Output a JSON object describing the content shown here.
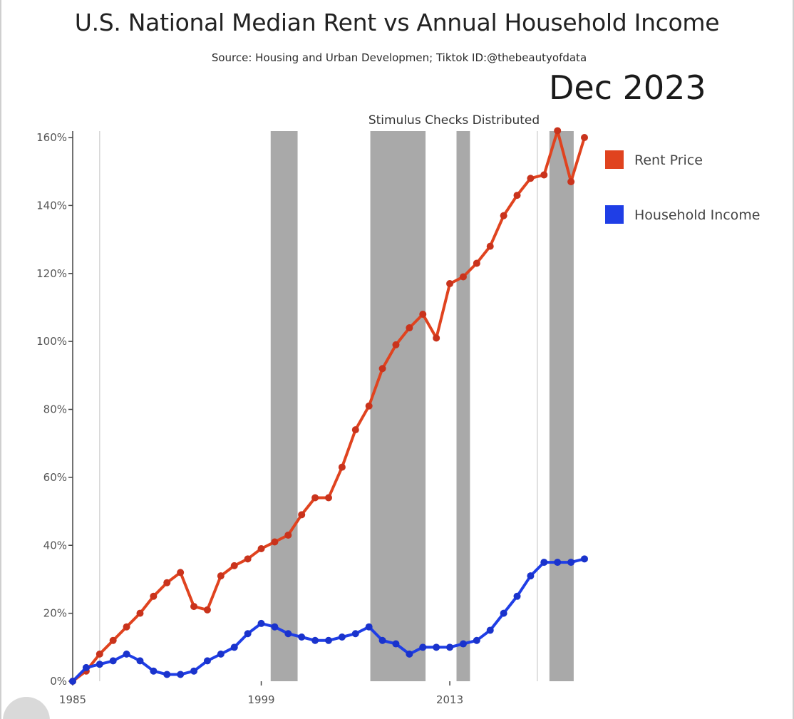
{
  "title": "U.S. National Median Rent vs Annual Household Income",
  "subtitle": "Source: Housing and Urban Developmen;  Tiktok ID:@thebeautyofdata",
  "date_label": "Dec 2023",
  "annotation": "Stimulus Checks Distributed",
  "chart_data": {
    "type": "line",
    "title": "U.S. National Median Rent vs Annual Household Income",
    "subtitle": "Source: Housing and Urban Developmen;  Tiktok ID:@thebeautyofdata",
    "xlabel": "",
    "ylabel": "",
    "xlim": [
      1985,
      2023
    ],
    "ylim": [
      0,
      160
    ],
    "y_ticks": [
      0,
      20,
      40,
      60,
      80,
      100,
      120,
      140,
      160
    ],
    "y_tick_labels": [
      "0%",
      "20%",
      "40%",
      "60%",
      "80%",
      "100%",
      "120%",
      "140%",
      "160%"
    ],
    "x_ticks": [
      1985,
      1999,
      2013
    ],
    "x_tick_labels": [
      "1985",
      "1999",
      "2013"
    ],
    "grid": false,
    "legend_position": "right",
    "annotation": "Stimulus Checks Distributed",
    "shaded_periods": [
      [
        1999.7,
        2001.7
      ],
      [
        2007.1,
        2011.2
      ],
      [
        2013.5,
        2014.5
      ],
      [
        2020.4,
        2022.2
      ]
    ],
    "reference_lines": [
      1987,
      2019.5
    ],
    "x": [
      1985,
      1986,
      1987,
      1988,
      1989,
      1990,
      1991,
      1992,
      1993,
      1994,
      1995,
      1996,
      1997,
      1998,
      1999,
      2000,
      2001,
      2002,
      2003,
      2004,
      2005,
      2006,
      2007,
      2008,
      2009,
      2010,
      2011,
      2012,
      2013,
      2014,
      2015,
      2016,
      2017,
      2018,
      2019,
      2020,
      2021,
      2022,
      2023
    ],
    "series": [
      {
        "name": "Rent Price",
        "color": "#e0431f",
        "marker_color": "#c9331c",
        "values": [
          0,
          3,
          8,
          12,
          16,
          20,
          25,
          29,
          32,
          22,
          21,
          31,
          34,
          36,
          39,
          41,
          43,
          49,
          54,
          54,
          63,
          74,
          81,
          92,
          99,
          104,
          108,
          101,
          117,
          119,
          123,
          128,
          137,
          143,
          148,
          149,
          162,
          147,
          160
        ]
      },
      {
        "name": "Household Income",
        "color": "#1f3ee6",
        "marker_color": "#1a33cc",
        "values": [
          0,
          4,
          5,
          6,
          8,
          6,
          3,
          2,
          2,
          3,
          6,
          8,
          10,
          14,
          17,
          16,
          14,
          13,
          12,
          12,
          13,
          14,
          16,
          12,
          11,
          8,
          10,
          10,
          10,
          11,
          12,
          15,
          20,
          25,
          31,
          35,
          35,
          35,
          36
        ]
      }
    ]
  }
}
